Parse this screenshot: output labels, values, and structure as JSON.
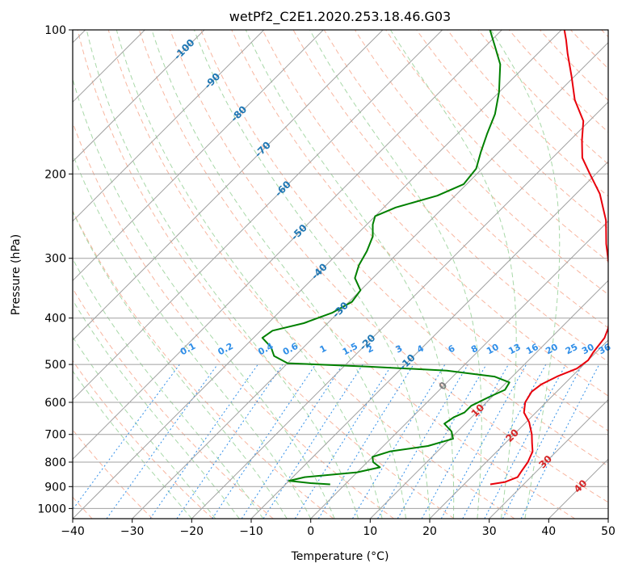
{
  "chart_data": {
    "type": "skew-t",
    "title": "wetPf2_C2E1.2020.253.18.46.G03",
    "xlabel": "Temperature (°C)",
    "ylabel": "Pressure (hPa)",
    "xlim": [
      -40,
      50
    ],
    "ylim": [
      1050,
      100
    ],
    "y_scale": "log",
    "grid": true,
    "x_ticks": [
      -40,
      -30,
      -20,
      -10,
      0,
      10,
      20,
      30,
      40,
      50
    ],
    "x_tick_labels": [
      "−40",
      "−30",
      "−20",
      "−10",
      "0",
      "10",
      "20",
      "30",
      "40",
      "50"
    ],
    "y_ticks": [
      100,
      200,
      300,
      400,
      500,
      600,
      700,
      800,
      900,
      1000
    ],
    "y_tick_labels": [
      "100",
      "200",
      "300",
      "400",
      "500",
      "600",
      "700",
      "800",
      "900",
      "1000"
    ],
    "colors": {
      "temperature": "#e8000b",
      "dewpoint": "#008000",
      "isotherm": "#a0a0a0",
      "dry_adiabat": "#f8b6a0",
      "moist_adiabat": "#a8d8a8",
      "mixing_ratio": "#2f8ee8",
      "label_blue": "#1f77b4",
      "label_red": "#d62728",
      "label_mix": "#2f8ee8"
    },
    "isotherm_labels": [
      {
        "t": -100,
        "text": "-100",
        "color": "blue"
      },
      {
        "t": -90,
        "text": "-90",
        "color": "blue"
      },
      {
        "t": -80,
        "text": "-80",
        "color": "blue"
      },
      {
        "t": -70,
        "text": "-70",
        "color": "blue"
      },
      {
        "t": -60,
        "text": "-60",
        "color": "blue"
      },
      {
        "t": -50,
        "text": "-50",
        "color": "blue"
      },
      {
        "t": -40,
        "text": "-40",
        "color": "blue"
      },
      {
        "t": -30,
        "text": "-30",
        "color": "blue"
      },
      {
        "t": -20,
        "text": "-20",
        "color": "blue"
      },
      {
        "t": -10,
        "text": "-10",
        "color": "blue"
      },
      {
        "t": 0,
        "text": "0",
        "color": "gray"
      },
      {
        "t": 10,
        "text": "10",
        "color": "red"
      },
      {
        "t": 20,
        "text": "20",
        "color": "red"
      },
      {
        "t": 30,
        "text": "30",
        "color": "red"
      },
      {
        "t": 40,
        "text": "40",
        "color": "red"
      }
    ],
    "mixing_ratio_labels": [
      "0.1",
      "0.2",
      "0.4",
      "0.6",
      "1",
      "1.5",
      "2",
      "3",
      "4",
      "6",
      "8",
      "10",
      "13",
      "16",
      "20",
      "25",
      "30",
      "36"
    ],
    "series": [
      {
        "name": "",
        "color": "#e8000b",
        "points": [
          [
            890,
            24.4
          ],
          [
            880,
            26.5
          ],
          [
            860,
            27.8
          ],
          [
            840,
            27.5
          ],
          [
            800,
            27.0
          ],
          [
            760,
            26.0
          ],
          [
            730,
            24.5
          ],
          [
            700,
            23.0
          ],
          [
            660,
            20.5
          ],
          [
            630,
            18.0
          ],
          [
            600,
            16.5
          ],
          [
            570,
            15.8
          ],
          [
            550,
            16.2
          ],
          [
            530,
            17.5
          ],
          [
            510,
            19.5
          ],
          [
            490,
            20.0
          ],
          [
            470,
            19.5
          ],
          [
            440,
            19.0
          ],
          [
            420,
            18.0
          ],
          [
            400,
            16.5
          ],
          [
            370,
            14.0
          ],
          [
            340,
            11.0
          ],
          [
            310,
            7.5
          ],
          [
            280,
            3.5
          ],
          [
            250,
            -0.5
          ],
          [
            220,
            -6.0
          ],
          [
            200,
            -11.0
          ],
          [
            185,
            -15.0
          ],
          [
            170,
            -18.0
          ],
          [
            155,
            -21.0
          ],
          [
            140,
            -26.0
          ],
          [
            125,
            -30.5
          ],
          [
            112,
            -35.0
          ],
          [
            105,
            -37.5
          ],
          [
            100,
            -39.5
          ]
        ]
      },
      {
        "name": "",
        "color": "#008000",
        "points": [
          [
            890,
            -2.5
          ],
          [
            885,
            -6.0
          ],
          [
            875,
            -10.0
          ],
          [
            860,
            -8.0
          ],
          [
            840,
            0.0
          ],
          [
            820,
            3.0
          ],
          [
            800,
            1.0
          ],
          [
            780,
            0.0
          ],
          [
            760,
            2.0
          ],
          [
            740,
            7.5
          ],
          [
            715,
            10.5
          ],
          [
            690,
            9.0
          ],
          [
            665,
            6.5
          ],
          [
            645,
            7.0
          ],
          [
            630,
            8.0
          ],
          [
            610,
            8.0
          ],
          [
            585,
            9.5
          ],
          [
            565,
            11.0
          ],
          [
            545,
            10.5
          ],
          [
            530,
            7.0
          ],
          [
            515,
            -2.0
          ],
          [
            505,
            -16.0
          ],
          [
            497,
            -30.0
          ],
          [
            480,
            -33.5
          ],
          [
            460,
            -35.5
          ],
          [
            440,
            -38.5
          ],
          [
            425,
            -38.0
          ],
          [
            410,
            -34.0
          ],
          [
            390,
            -31.0
          ],
          [
            370,
            -29.5
          ],
          [
            350,
            -30.0
          ],
          [
            330,
            -33.0
          ],
          [
            310,
            -34.5
          ],
          [
            290,
            -35.5
          ],
          [
            270,
            -37.0
          ],
          [
            255,
            -39.0
          ],
          [
            245,
            -40.0
          ],
          [
            235,
            -38.0
          ],
          [
            222,
            -33.0
          ],
          [
            210,
            -30.5
          ],
          [
            195,
            -31.0
          ],
          [
            180,
            -33.0
          ],
          [
            165,
            -35.0
          ],
          [
            150,
            -37.0
          ],
          [
            135,
            -40.0
          ],
          [
            118,
            -44.5
          ],
          [
            108,
            -48.5
          ],
          [
            100,
            -52.0
          ]
        ]
      }
    ]
  }
}
